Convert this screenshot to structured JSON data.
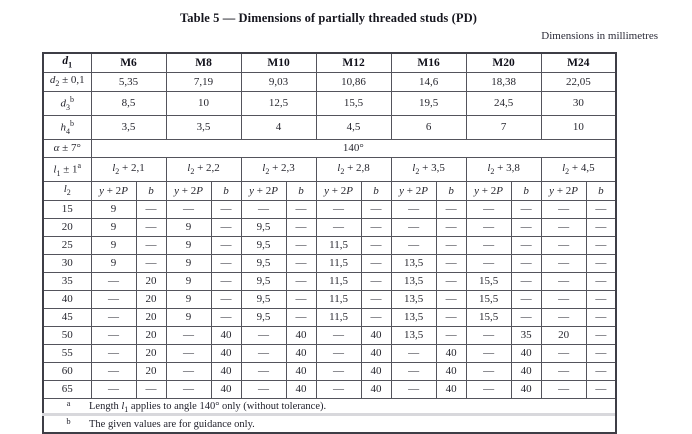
{
  "page": {
    "title": "Table 5 — Dimensions of partially threaded studs (PD)",
    "units_note": "Dimensions in millimetres"
  },
  "table": {
    "corner_label": [
      {
        "t": "i",
        "v": "d"
      },
      {
        "t": "sub",
        "v": "1"
      }
    ],
    "sizes": [
      "M6",
      "M8",
      "M10",
      "M12",
      "M16",
      "M20",
      "M24"
    ],
    "spec_rows": [
      {
        "name": "d2",
        "label": [
          {
            "t": "i",
            "v": "d"
          },
          {
            "t": "sub",
            "v": "2"
          },
          {
            "t": "t",
            "v": " ± 0,1"
          }
        ],
        "values": [
          "5,35",
          "7,19",
          "9,03",
          "10,86",
          "14,6",
          "18,38",
          "22,05"
        ]
      },
      {
        "name": "d3",
        "label": [
          {
            "t": "i",
            "v": "d"
          },
          {
            "t": "sub",
            "v": "3"
          },
          {
            "t": "sup",
            "v": "b"
          }
        ],
        "values": [
          "8,5",
          "10",
          "12,5",
          "15,5",
          "19,5",
          "24,5",
          "30"
        ]
      },
      {
        "name": "h4",
        "label": [
          {
            "t": "i",
            "v": "h"
          },
          {
            "t": "sub",
            "v": "4"
          },
          {
            "t": "sup",
            "v": "b"
          }
        ],
        "values": [
          "3,5",
          "3,5",
          "4",
          "4,5",
          "6",
          "7",
          "10"
        ]
      }
    ],
    "alpha_row": {
      "label": [
        {
          "t": "i",
          "v": "α"
        },
        {
          "t": "t",
          "v": " ± 7°"
        }
      ],
      "value": "140°"
    },
    "l1_row": {
      "label": [
        {
          "t": "i",
          "v": "l"
        },
        {
          "t": "sub",
          "v": "1"
        },
        {
          "t": "t",
          "v": " ± 1"
        },
        {
          "t": "sup",
          "v": "a"
        }
      ],
      "values": [
        [
          {
            "t": "i",
            "v": "l"
          },
          {
            "t": "sub",
            "v": "2"
          },
          {
            "t": "t",
            "v": " + 2,1"
          }
        ],
        [
          {
            "t": "i",
            "v": "l"
          },
          {
            "t": "sub",
            "v": "2"
          },
          {
            "t": "t",
            "v": " + 2,2"
          }
        ],
        [
          {
            "t": "i",
            "v": "l"
          },
          {
            "t": "sub",
            "v": "2"
          },
          {
            "t": "t",
            "v": " + 2,3"
          }
        ],
        [
          {
            "t": "i",
            "v": "l"
          },
          {
            "t": "sub",
            "v": "2"
          },
          {
            "t": "t",
            "v": " + 2,8"
          }
        ],
        [
          {
            "t": "i",
            "v": "l"
          },
          {
            "t": "sub",
            "v": "2"
          },
          {
            "t": "t",
            "v": " + 3,5"
          }
        ],
        [
          {
            "t": "i",
            "v": "l"
          },
          {
            "t": "sub",
            "v": "2"
          },
          {
            "t": "t",
            "v": " + 3,8"
          }
        ],
        [
          {
            "t": "i",
            "v": "l"
          },
          {
            "t": "sub",
            "v": "2"
          },
          {
            "t": "t",
            "v": " + 4,5"
          }
        ]
      ]
    },
    "subheader": {
      "label": [
        {
          "t": "i",
          "v": "l"
        },
        {
          "t": "sub",
          "v": "2"
        }
      ],
      "col_a": [
        {
          "t": "i",
          "v": "y"
        },
        {
          "t": "t",
          "v": " + 2"
        },
        {
          "t": "i",
          "v": "P"
        }
      ],
      "col_b": [
        {
          "t": "i",
          "v": "b"
        }
      ]
    },
    "body_rows": [
      {
        "l2": "15",
        "cells": [
          "9",
          "—",
          "—",
          "—",
          "—",
          "—",
          "—",
          "—",
          "—",
          "—",
          "—",
          "—",
          "—",
          "—"
        ]
      },
      {
        "l2": "20",
        "cells": [
          "9",
          "—",
          "9",
          "—",
          "9,5",
          "—",
          "—",
          "—",
          "—",
          "—",
          "—",
          "—",
          "—",
          "—"
        ]
      },
      {
        "l2": "25",
        "cells": [
          "9",
          "—",
          "9",
          "—",
          "9,5",
          "—",
          "11,5",
          "—",
          "—",
          "—",
          "—",
          "—",
          "—",
          "—"
        ]
      },
      {
        "l2": "30",
        "cells": [
          "9",
          "—",
          "9",
          "—",
          "9,5",
          "—",
          "11,5",
          "—",
          "13,5",
          "—",
          "—",
          "—",
          "—",
          "—"
        ]
      },
      {
        "l2": "35",
        "cells": [
          "—",
          "20",
          "9",
          "—",
          "9,5",
          "—",
          "11,5",
          "—",
          "13,5",
          "—",
          "15,5",
          "—",
          "—",
          "—"
        ]
      },
      {
        "l2": "40",
        "cells": [
          "—",
          "20",
          "9",
          "—",
          "9,5",
          "—",
          "11,5",
          "—",
          "13,5",
          "—",
          "15,5",
          "—",
          "—",
          "—"
        ]
      },
      {
        "l2": "45",
        "cells": [
          "—",
          "20",
          "9",
          "—",
          "9,5",
          "—",
          "11,5",
          "—",
          "13,5",
          "—",
          "15,5",
          "—",
          "—",
          "—"
        ]
      },
      {
        "l2": "50",
        "cells": [
          "—",
          "20",
          "—",
          "40",
          "—",
          "40",
          "—",
          "40",
          "13,5",
          "—",
          "—",
          "35",
          "20",
          "—"
        ]
      },
      {
        "l2": "55",
        "cells": [
          "—",
          "20",
          "—",
          "40",
          "—",
          "40",
          "—",
          "40",
          "—",
          "40",
          "—",
          "40",
          "—",
          "—"
        ]
      },
      {
        "l2": "60",
        "cells": [
          "—",
          "20",
          "—",
          "40",
          "—",
          "40",
          "—",
          "40",
          "—",
          "40",
          "—",
          "40",
          "—",
          "—"
        ]
      },
      {
        "l2": "65",
        "cells": [
          "—",
          "—",
          "—",
          "40",
          "—",
          "40",
          "—",
          "40",
          "—",
          "40",
          "—",
          "40",
          "—",
          "—"
        ]
      }
    ],
    "footnotes": [
      {
        "marker": "a",
        "segments": [
          {
            "t": "t",
            "v": "Length "
          },
          {
            "t": "i",
            "v": "l"
          },
          {
            "t": "sub",
            "v": "1"
          },
          {
            "t": "t",
            "v": " applies to angle 140° only (without tolerance)."
          }
        ]
      },
      {
        "marker": "b",
        "segments": [
          {
            "t": "t",
            "v": "The given values are for guidance only."
          }
        ]
      }
    ]
  }
}
